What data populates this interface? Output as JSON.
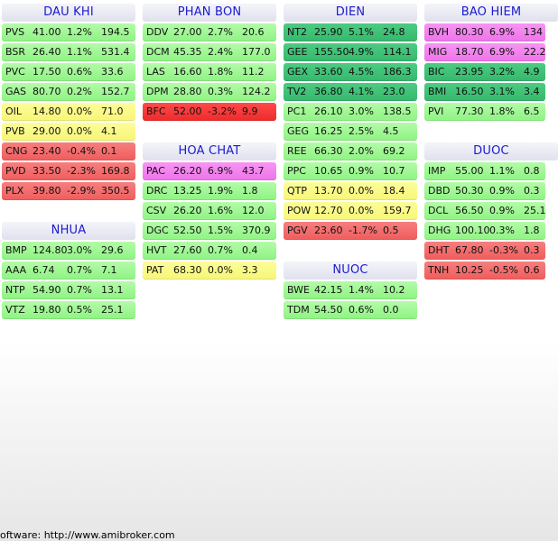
{
  "colors": {
    "green": "#9cf690",
    "yellow": "#fafa88",
    "red": "#f36d6d",
    "pink": "#f284ee",
    "teal": "#3ec276",
    "bright_red": "#f53a3a",
    "title_text": "#1a1ad0"
  },
  "columns": [
    {
      "blocks": [
        {
          "title": "DAU KHI",
          "rows": [
            {
              "sym": "PVS",
              "price": "41.00",
              "chg": "1.2%",
              "vol": "194.5",
              "color": "green"
            },
            {
              "sym": "BSR",
              "price": "26.40",
              "chg": "1.1%",
              "vol": "531.4",
              "color": "green"
            },
            {
              "sym": "PVC",
              "price": "17.50",
              "chg": "0.6%",
              "vol": "33.6",
              "color": "green"
            },
            {
              "sym": "GAS",
              "price": "80.70",
              "chg": "0.2%",
              "vol": "152.7",
              "color": "green"
            },
            {
              "sym": "OIL",
              "price": "14.80",
              "chg": "0.0%",
              "vol": "71.0",
              "color": "yellow"
            },
            {
              "sym": "PVB",
              "price": "29.00",
              "chg": "0.0%",
              "vol": "4.1",
              "color": "yellow"
            },
            {
              "sym": "CNG",
              "price": "23.40",
              "chg": "-0.4%",
              "vol": "0.1",
              "color": "red"
            },
            {
              "sym": "PVD",
              "price": "33.50",
              "chg": "-2.3%",
              "vol": "169.8",
              "color": "red"
            },
            {
              "sym": "PLX",
              "price": "39.80",
              "chg": "-2.9%",
              "vol": "350.5",
              "color": "red"
            }
          ]
        },
        {
          "title": "NHUA",
          "rows": [
            {
              "sym": "BMP",
              "price": "124.80",
              "chg": "3.0%",
              "vol": "29.6",
              "color": "green"
            },
            {
              "sym": "AAA",
              "price": "6.74",
              "chg": "0.7%",
              "vol": "7.1",
              "color": "green"
            },
            {
              "sym": "NTP",
              "price": "54.90",
              "chg": "0.7%",
              "vol": "13.1",
              "color": "green"
            },
            {
              "sym": "VTZ",
              "price": "19.80",
              "chg": "0.5%",
              "vol": "25.1",
              "color": "green"
            }
          ]
        }
      ]
    },
    {
      "blocks": [
        {
          "title": "PHAN BON",
          "rows": [
            {
              "sym": "DDV",
              "price": "27.00",
              "chg": "2.7%",
              "vol": "20.6",
              "color": "green"
            },
            {
              "sym": "DCM",
              "price": "45.35",
              "chg": "2.4%",
              "vol": "177.0",
              "color": "green"
            },
            {
              "sym": "LAS",
              "price": "16.60",
              "chg": "1.8%",
              "vol": "11.2",
              "color": "green"
            },
            {
              "sym": "DPM",
              "price": "28.80",
              "chg": "0.3%",
              "vol": "124.2",
              "color": "green"
            },
            {
              "sym": "BFC",
              "price": "52.00",
              "chg": "-3.2%",
              "vol": "9.9",
              "color": "bright_red"
            }
          ]
        },
        {
          "title": "HOA CHAT",
          "rows": [
            {
              "sym": "PAC",
              "price": "26.20",
              "chg": "6.9%",
              "vol": "43.7",
              "color": "pink"
            },
            {
              "sym": "DRC",
              "price": "13.25",
              "chg": "1.9%",
              "vol": "1.8",
              "color": "green"
            },
            {
              "sym": "CSV",
              "price": "26.20",
              "chg": "1.6%",
              "vol": "12.0",
              "color": "green"
            },
            {
              "sym": "DGC",
              "price": "52.50",
              "chg": "1.5%",
              "vol": "370.9",
              "color": "green"
            },
            {
              "sym": "HVT",
              "price": "27.60",
              "chg": "0.7%",
              "vol": "0.4",
              "color": "green"
            },
            {
              "sym": "PAT",
              "price": "68.30",
              "chg": "0.0%",
              "vol": "3.3",
              "color": "yellow"
            }
          ]
        }
      ]
    },
    {
      "blocks": [
        {
          "title": "DIEN",
          "rows": [
            {
              "sym": "NT2",
              "price": "25.90",
              "chg": "5.1%",
              "vol": "24.8",
              "color": "teal"
            },
            {
              "sym": "GEE",
              "price": "155.50",
              "chg": "4.9%",
              "vol": "114.1",
              "color": "teal"
            },
            {
              "sym": "GEX",
              "price": "33.60",
              "chg": "4.5%",
              "vol": "186.3",
              "color": "teal"
            },
            {
              "sym": "TV2",
              "price": "36.80",
              "chg": "4.1%",
              "vol": "23.0",
              "color": "teal"
            },
            {
              "sym": "PC1",
              "price": "26.10",
              "chg": "3.0%",
              "vol": "138.5",
              "color": "green"
            },
            {
              "sym": "GEG",
              "price": "16.25",
              "chg": "2.5%",
              "vol": "4.5",
              "color": "green"
            },
            {
              "sym": "REE",
              "price": "66.30",
              "chg": "2.0%",
              "vol": "69.2",
              "color": "green"
            },
            {
              "sym": "PPC",
              "price": "10.65",
              "chg": "0.9%",
              "vol": "10.7",
              "color": "green"
            },
            {
              "sym": "QTP",
              "price": "13.70",
              "chg": "0.0%",
              "vol": "18.4",
              "color": "yellow"
            },
            {
              "sym": "POW",
              "price": "12.70",
              "chg": "0.0%",
              "vol": "159.7",
              "color": "yellow"
            },
            {
              "sym": "PGV",
              "price": "23.60",
              "chg": "-1.7%",
              "vol": "0.5",
              "color": "red"
            }
          ]
        },
        {
          "title": "NUOC",
          "rows": [
            {
              "sym": "BWE",
              "price": "42.15",
              "chg": "1.4%",
              "vol": "10.2",
              "color": "green"
            },
            {
              "sym": "TDM",
              "price": "54.50",
              "chg": "0.6%",
              "vol": "0.0",
              "color": "green"
            }
          ]
        }
      ]
    },
    {
      "blocks": [
        {
          "title": "BAO HIEM",
          "rows": [
            {
              "sym": "BVH",
              "price": "80.30",
              "chg": "6.9%",
              "vol": "134",
              "color": "pink"
            },
            {
              "sym": "MIG",
              "price": "18.70",
              "chg": "6.9%",
              "vol": "22.2",
              "color": "pink"
            },
            {
              "sym": "BIC",
              "price": "23.95",
              "chg": "3.2%",
              "vol": "4.9",
              "color": "teal"
            },
            {
              "sym": "BMI",
              "price": "16.50",
              "chg": "3.1%",
              "vol": "3.4",
              "color": "teal"
            },
            {
              "sym": "PVI",
              "price": "77.30",
              "chg": "1.8%",
              "vol": "6.5",
              "color": "green"
            }
          ]
        },
        {
          "title": "DUOC",
          "rows": [
            {
              "sym": "IMP",
              "price": "55.00",
              "chg": "1.1%",
              "vol": "0.8",
              "color": "green"
            },
            {
              "sym": "DBD",
              "price": "50.30",
              "chg": "0.9%",
              "vol": "0.3",
              "color": "green"
            },
            {
              "sym": "DCL",
              "price": "56.50",
              "chg": "0.9%",
              "vol": "25.1",
              "color": "green"
            },
            {
              "sym": "DHG",
              "price": "100.10",
              "chg": "0.3%",
              "vol": "1.8",
              "color": "green"
            },
            {
              "sym": "DHT",
              "price": "67.80",
              "chg": "-0.3%",
              "vol": "0.3",
              "color": "red"
            },
            {
              "sym": "TNH",
              "price": "10.25",
              "chg": "-0.5%",
              "vol": "0.6",
              "color": "red"
            }
          ]
        }
      ]
    }
  ],
  "footer": {
    "text": "oftware: http://www.amibroker.com"
  }
}
